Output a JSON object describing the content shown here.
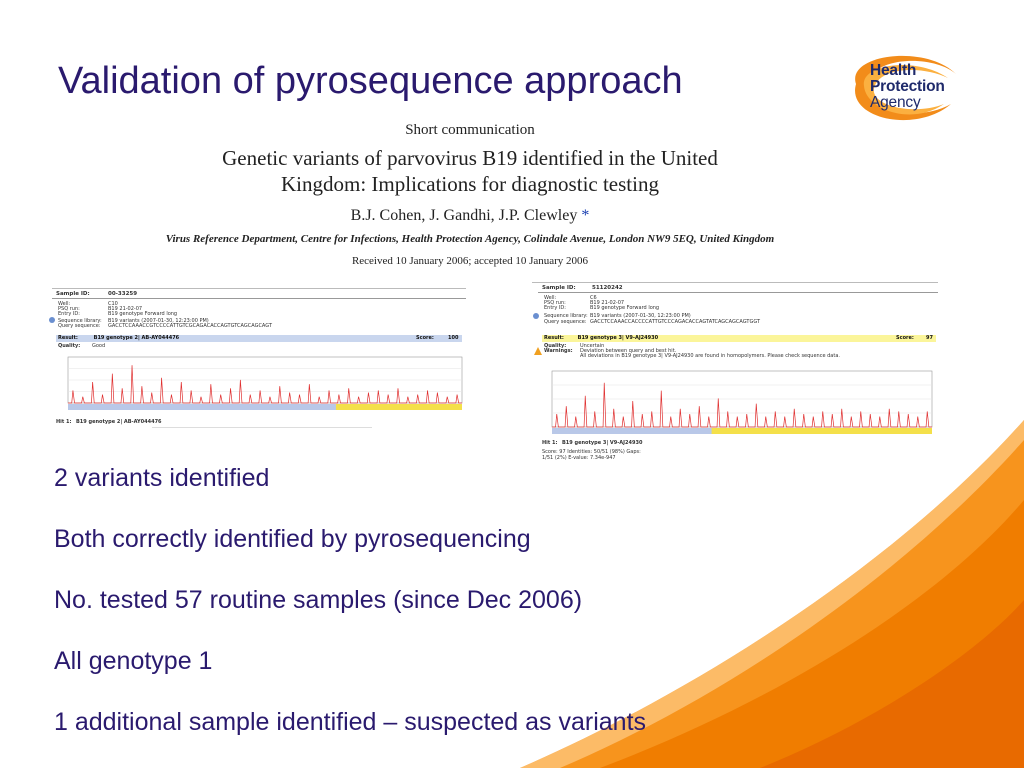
{
  "slide": {
    "title": "Validation of pyrosequence approach"
  },
  "logo": {
    "line1": "Health",
    "line2": "Protection",
    "line3": "Agency"
  },
  "paper": {
    "kind": "Short communication",
    "title_line1": "Genetic variants of parvovirus B19 identified in the United",
    "title_line2": "Kingdom: Implications for diagnostic testing",
    "authors": "B.J. Cohen, J. Gandhi, J.P. Clewley",
    "author_mark": "*",
    "affiliation": "Virus Reference Department, Centre for Infections, Health Protection Agency, Colindale Avenue, London NW9 5EQ, United Kingdom",
    "received": "Received 10 January 2006; accepted 10 January 2006"
  },
  "report_left": {
    "sample_label": "Sample ID:",
    "sample_id": "00-33259",
    "well_label": "Well:",
    "well": "C10",
    "run_label": "PSQ run:",
    "run": "B19 21-02-07",
    "entry_label": "Entry ID:",
    "entry": "B19 genotype Forward long",
    "library_label": "Sequence library:",
    "library": "B19 variants (2007-01-30, 12:23:00 PM)",
    "query_label": "Query sequence:",
    "query": "GACCTCCAAACCGTCCCCATTGTCGCAGACACCAGTGTCAGCAGCAGT",
    "result_label": "Result:",
    "result": "B19 genotype 2| AB-AY044476",
    "score_label": "Score:",
    "score": "100",
    "quality_label": "Quality:",
    "quality": "Good",
    "hit_label": "Hit 1:",
    "hit": "B19 genotype 2| AB-AY044476"
  },
  "report_right": {
    "sample_label": "Sample ID:",
    "sample_id": "51120242",
    "well_label": "Well:",
    "well": "C6",
    "run_label": "PSQ run:",
    "run": "B19 21-02-07",
    "entry_label": "Entry ID:",
    "entry": "B19 genotype Forward long",
    "library_label": "Sequence library:",
    "library": "B19 variants (2007-01-30, 12:23:00 PM)",
    "query_label": "Query sequence:",
    "query": "GACCTCCAAACCACCCCATTGTCCCAGACACCAGTATCAGCAGCAGTGGT",
    "result_label": "Result:",
    "result": "B19 genotype 3| V9-AJ24930",
    "score_label": "Score:",
    "score": "97",
    "quality_label": "Quality:",
    "quality": "Uncertain",
    "warnings_label": "Warnings:",
    "warning1": "Deviation between query and best hit.",
    "warning2": "All deviations in B19 genotype 3| V9-AJ24930 are found in homopolymers. Please check sequence data.",
    "hit_label": "Hit 1:",
    "hit": "B19 genotype 3| V9-AJ24930",
    "stats": "Score: 97   Identities: 50/51 (98%)   Gaps: 1/51 (2%)   E-value: 7.34e-947"
  },
  "bullets": [
    "2 variants identified",
    "Both correctly identified by pyrosequencing",
    "No. tested 57 routine samples (since Dec 2006)",
    "All genotype 1",
    "1 additional sample identified – suspected as variants"
  ],
  "colors": {
    "title": "#2a1a6e",
    "orange": "#f07d00",
    "orange_light": "#fbb040",
    "logo_navy": "#1f2a6b"
  }
}
